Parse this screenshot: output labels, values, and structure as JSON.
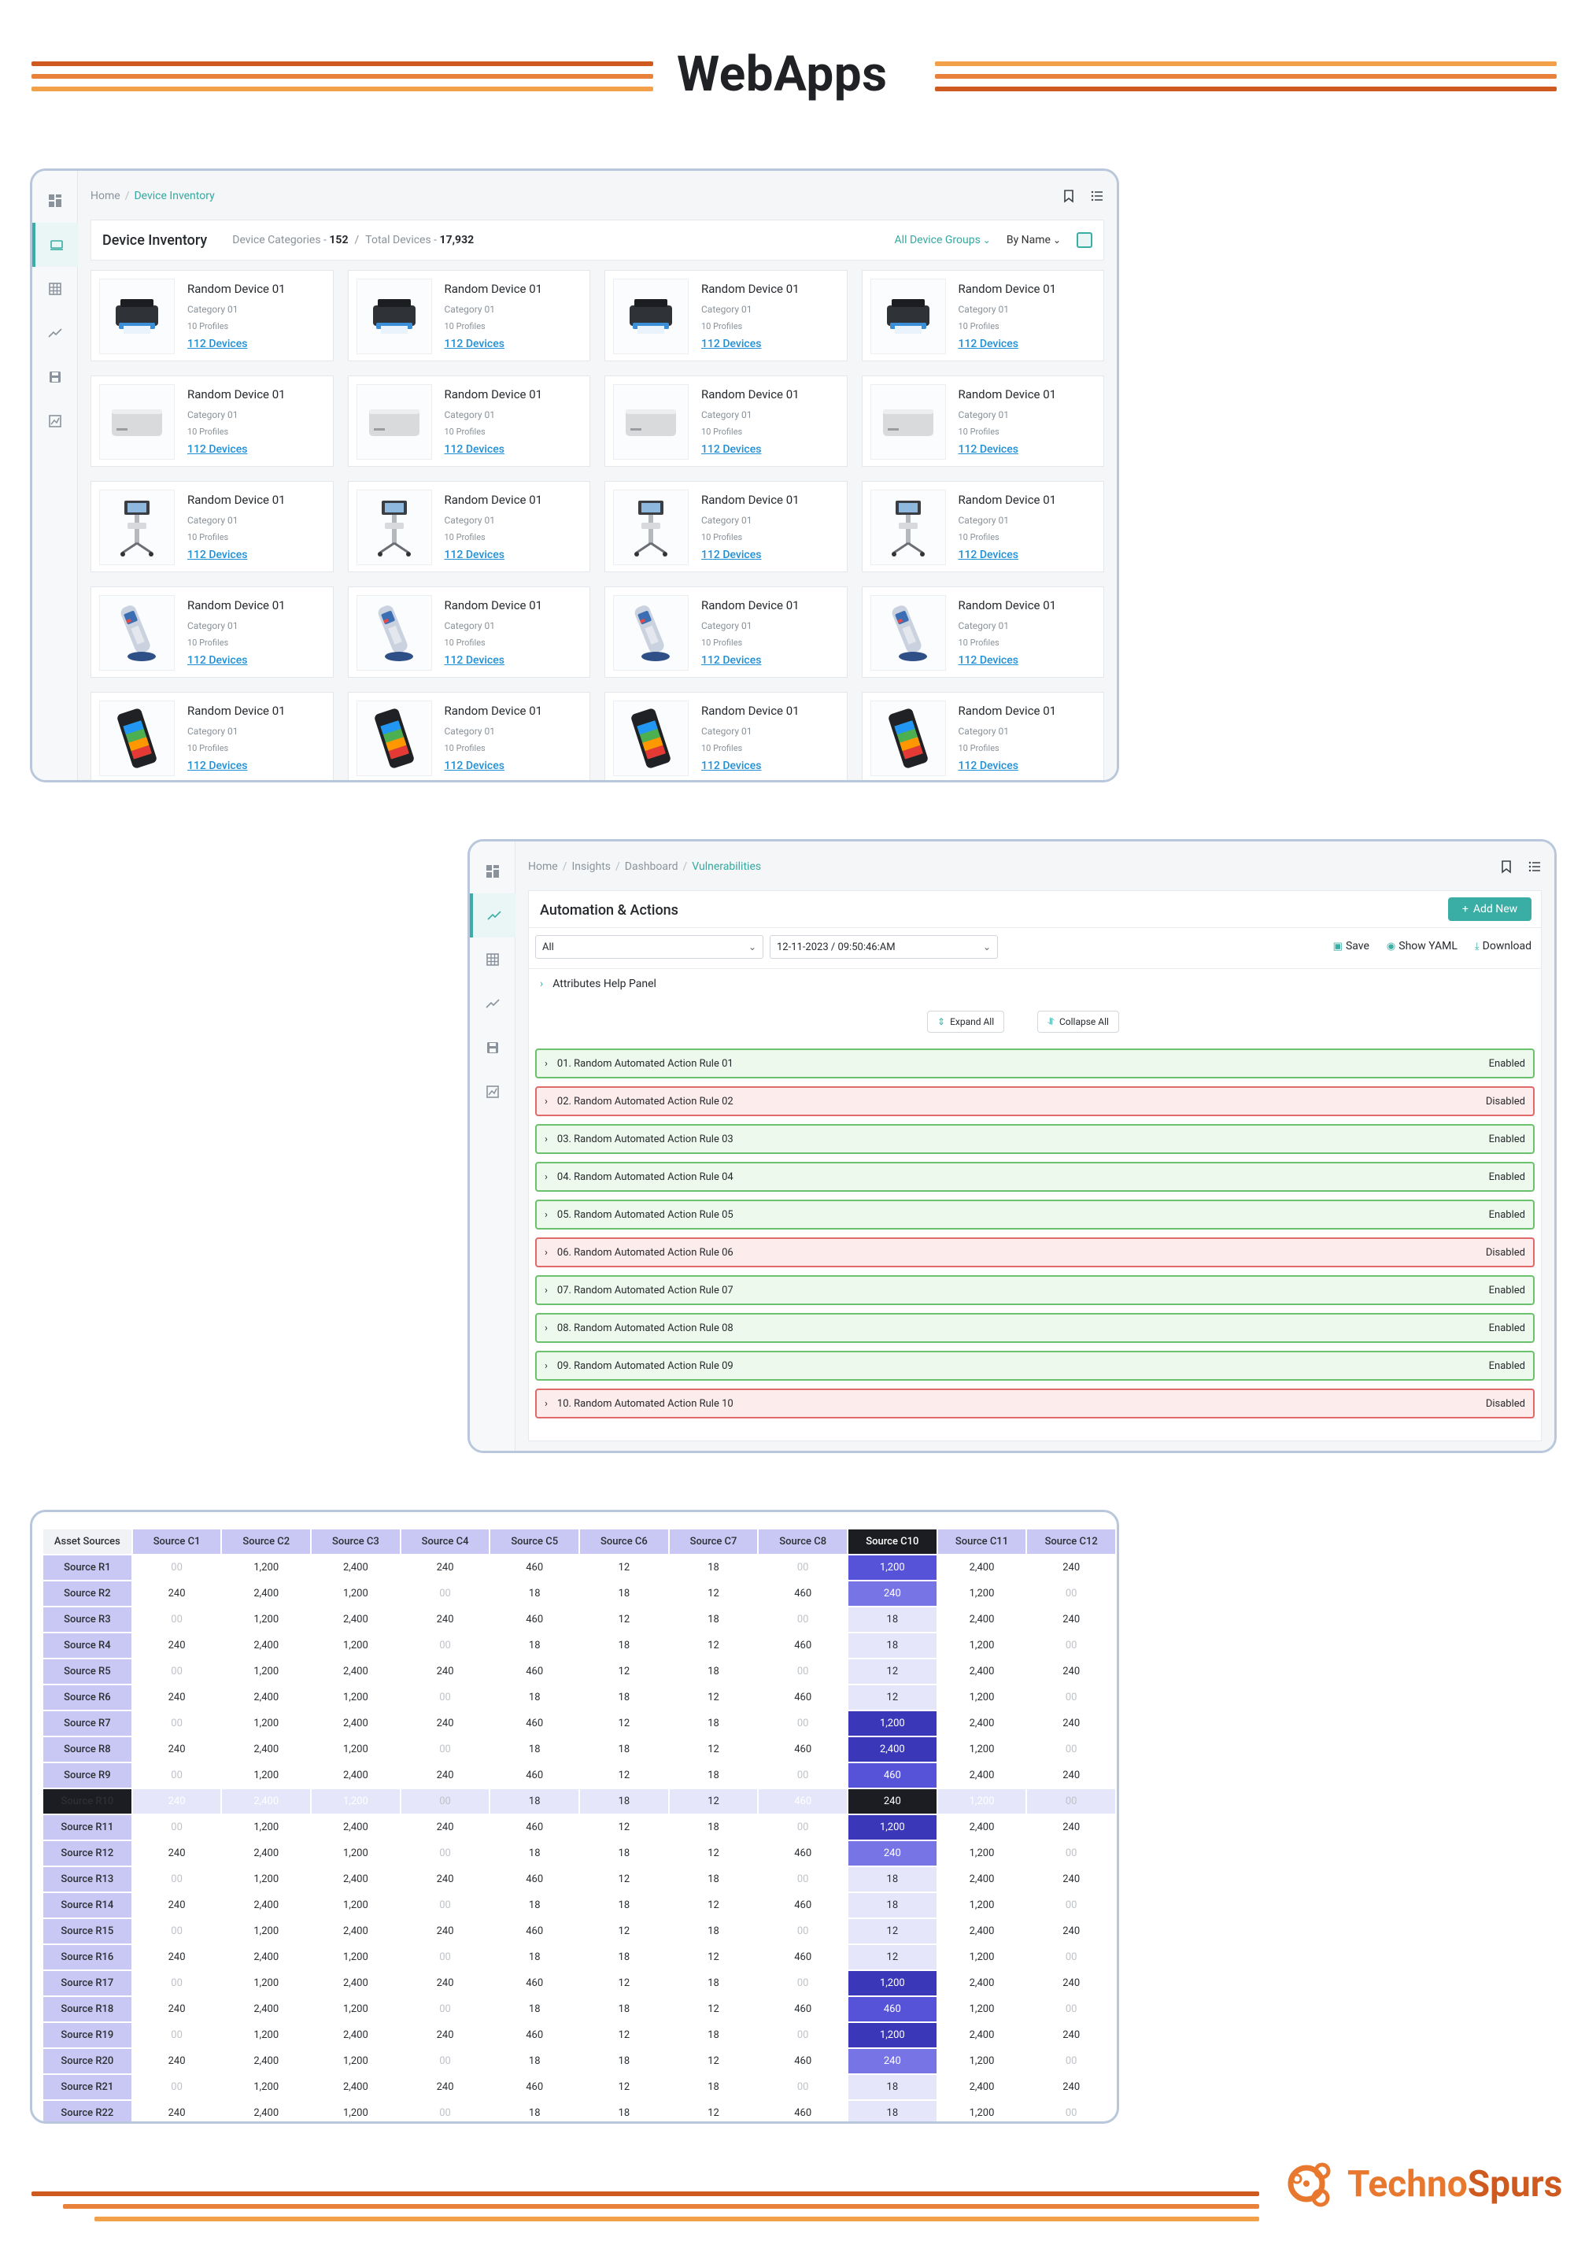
{
  "header": {
    "title": "WebApps"
  },
  "footer": {
    "brand_part1": "Techno",
    "brand_part2": "Spurs"
  },
  "colors": {
    "accent": "#3aaea4",
    "stripe_dark": "#cf5a1f",
    "stripe_light": "#f2a14a",
    "enabled": "#6cc26c",
    "disabled": "#e06a6a",
    "heat_header": "#c9c8f5"
  },
  "inventory": {
    "breadcrumb": [
      "Home",
      "Device Inventory"
    ],
    "title": "Device Inventory",
    "categories_label": "Device Categories -",
    "categories_value": "152",
    "total_label": "Total Devices -",
    "total_value": "17,932",
    "filter_groups": "All Device Groups",
    "sort": "By Name",
    "card": {
      "name": "Random Device 01",
      "category": "Category 01",
      "profiles": "10 Profiles",
      "link": "112 Devices"
    },
    "rows": [
      "printer",
      "mac-studio",
      "medical-cart",
      "cordless-phone",
      "handheld-terminal"
    ]
  },
  "automation": {
    "breadcrumb": [
      "Home",
      "Insights",
      "Dashboard",
      "Vulnerabilities"
    ],
    "title": "Automation & Actions",
    "add_new": "Add New",
    "filter_value": "All",
    "datetime_value": "12-11-2023 / 09:50:46:AM",
    "save": "Save",
    "show_yaml": "Show YAML",
    "download": "Download",
    "help_panel": "Attributes Help Panel",
    "expand_all": "Expand All",
    "collapse_all": "Collapse All",
    "rules": [
      {
        "label": "01. Random Automated Action Rule 01",
        "status": "Enabled"
      },
      {
        "label": "02. Random Automated Action Rule 02",
        "status": "Disabled"
      },
      {
        "label": "03. Random Automated Action Rule 03",
        "status": "Enabled"
      },
      {
        "label": "04. Random Automated Action Rule 04",
        "status": "Enabled"
      },
      {
        "label": "05. Random Automated Action Rule 05",
        "status": "Enabled"
      },
      {
        "label": "06. Random Automated Action Rule 06",
        "status": "Disabled"
      },
      {
        "label": "07. Random Automated Action Rule 07",
        "status": "Enabled"
      },
      {
        "label": "08. Random Automated Action Rule 08",
        "status": "Enabled"
      },
      {
        "label": "09. Random Automated Action Rule 09",
        "status": "Enabled"
      },
      {
        "label": "10. Random Automated Action Rule 10",
        "status": "Disabled"
      }
    ]
  },
  "heatmap": {
    "corner": "Asset Sources",
    "columns": [
      "Source C1",
      "Source C2",
      "Source C3",
      "Source C4",
      "Source C5",
      "Source C6",
      "Source C7",
      "Source C8",
      "Source C10",
      "Source C11",
      "Source C12"
    ],
    "highlight_column_index": 8,
    "highlight_row_index": 9,
    "rows": [
      {
        "name": "Source R1",
        "cells": [
          "00",
          "1,200",
          "2,400",
          "240",
          "460",
          "12",
          "18",
          "00",
          "1,200",
          "2,400",
          "240"
        ],
        "c10_level": "h3"
      },
      {
        "name": "Source R2",
        "cells": [
          "240",
          "2,400",
          "1,200",
          "00",
          "18",
          "18",
          "12",
          "460",
          "240",
          "1,200",
          "00"
        ],
        "c10_level": "h1"
      },
      {
        "name": "Source R3",
        "cells": [
          "00",
          "1,200",
          "2,400",
          "240",
          "460",
          "12",
          "18",
          "00",
          "18",
          "2,400",
          "240"
        ],
        "c10_level": "h0"
      },
      {
        "name": "Source R4",
        "cells": [
          "240",
          "2,400",
          "1,200",
          "00",
          "18",
          "18",
          "12",
          "460",
          "18",
          "1,200",
          "00"
        ],
        "c10_level": "h0"
      },
      {
        "name": "Source R5",
        "cells": [
          "00",
          "1,200",
          "2,400",
          "240",
          "460",
          "12",
          "18",
          "00",
          "12",
          "2,400",
          "240"
        ],
        "c10_level": "h0"
      },
      {
        "name": "Source R6",
        "cells": [
          "240",
          "2,400",
          "1,200",
          "00",
          "18",
          "18",
          "12",
          "460",
          "12",
          "1,200",
          "00"
        ],
        "c10_level": "h0"
      },
      {
        "name": "Source R7",
        "cells": [
          "00",
          "1,200",
          "2,400",
          "240",
          "460",
          "12",
          "18",
          "00",
          "1,200",
          "2,400",
          "240"
        ],
        "c10_level": "h2"
      },
      {
        "name": "Source R8",
        "cells": [
          "240",
          "2,400",
          "1,200",
          "00",
          "18",
          "18",
          "12",
          "460",
          "2,400",
          "1,200",
          "00"
        ],
        "c10_level": "h2"
      },
      {
        "name": "Source R9",
        "cells": [
          "00",
          "1,200",
          "2,400",
          "240",
          "460",
          "12",
          "18",
          "00",
          "460",
          "2,400",
          "240"
        ],
        "c10_level": "h3"
      },
      {
        "name": "Source R10",
        "cells": [
          "240",
          "2,400",
          "1,200",
          "00",
          "18",
          "18",
          "12",
          "460",
          "240",
          "1,200",
          "00"
        ],
        "c10_level": "dark"
      },
      {
        "name": "Source R11",
        "cells": [
          "00",
          "1,200",
          "2,400",
          "240",
          "460",
          "12",
          "18",
          "00",
          "1,200",
          "2,400",
          "240"
        ],
        "c10_level": "h2"
      },
      {
        "name": "Source R12",
        "cells": [
          "240",
          "2,400",
          "1,200",
          "00",
          "18",
          "18",
          "12",
          "460",
          "240",
          "1,200",
          "00"
        ],
        "c10_level": "h1"
      },
      {
        "name": "Source R13",
        "cells": [
          "00",
          "1,200",
          "2,400",
          "240",
          "460",
          "12",
          "18",
          "00",
          "18",
          "2,400",
          "240"
        ],
        "c10_level": "h0"
      },
      {
        "name": "Source R14",
        "cells": [
          "240",
          "2,400",
          "1,200",
          "00",
          "18",
          "18",
          "12",
          "460",
          "18",
          "1,200",
          "00"
        ],
        "c10_level": "h0"
      },
      {
        "name": "Source R15",
        "cells": [
          "00",
          "1,200",
          "2,400",
          "240",
          "460",
          "12",
          "18",
          "00",
          "12",
          "2,400",
          "240"
        ],
        "c10_level": "h0"
      },
      {
        "name": "Source R16",
        "cells": [
          "240",
          "2,400",
          "1,200",
          "00",
          "18",
          "18",
          "12",
          "460",
          "12",
          "1,200",
          "00"
        ],
        "c10_level": "h0"
      },
      {
        "name": "Source R17",
        "cells": [
          "00",
          "1,200",
          "2,400",
          "240",
          "460",
          "12",
          "18",
          "00",
          "1,200",
          "2,400",
          "240"
        ],
        "c10_level": "h2"
      },
      {
        "name": "Source R18",
        "cells": [
          "240",
          "2,400",
          "1,200",
          "00",
          "18",
          "18",
          "12",
          "460",
          "460",
          "1,200",
          "00"
        ],
        "c10_level": "h3"
      },
      {
        "name": "Source R19",
        "cells": [
          "00",
          "1,200",
          "2,400",
          "240",
          "460",
          "12",
          "18",
          "00",
          "1,200",
          "2,400",
          "240"
        ],
        "c10_level": "h2"
      },
      {
        "name": "Source R20",
        "cells": [
          "240",
          "2,400",
          "1,200",
          "00",
          "18",
          "18",
          "12",
          "460",
          "240",
          "1,200",
          "00"
        ],
        "c10_level": "h1"
      },
      {
        "name": "Source R21",
        "cells": [
          "00",
          "1,200",
          "2,400",
          "240",
          "460",
          "12",
          "18",
          "00",
          "18",
          "2,400",
          "240"
        ],
        "c10_level": "h0"
      },
      {
        "name": "Source R22",
        "cells": [
          "240",
          "2,400",
          "1,200",
          "00",
          "18",
          "18",
          "12",
          "460",
          "18",
          "1,200",
          "00"
        ],
        "c10_level": "h0"
      }
    ],
    "r10_cell_levels": [
      "h1",
      "h2",
      "h2",
      "h0",
      "h0",
      "h0",
      "",
      "h3",
      "dark",
      "h2",
      "h0"
    ]
  }
}
